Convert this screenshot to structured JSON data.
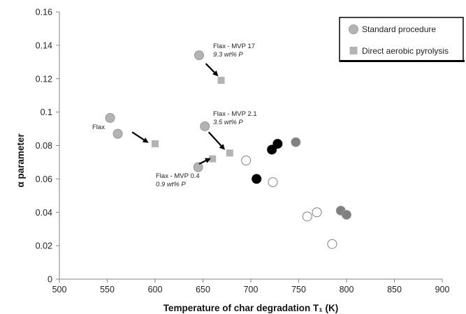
{
  "chart_data": {
    "type": "scatter",
    "xlabel": "Temperature of char degradation T₁ (K)",
    "ylabel": "α parameter",
    "xlim": [
      500,
      900
    ],
    "ylim": [
      0,
      0.16
    ],
    "x_ticks": [
      "500",
      "550",
      "600",
      "650",
      "700",
      "750",
      "800",
      "850",
      "900"
    ],
    "y_ticks": [
      "0",
      "0.02",
      "0.04",
      "0.06",
      "0.08",
      "0.1",
      "0.12",
      "0.14",
      "0.16"
    ],
    "grid": false,
    "legend_position": "top-right",
    "legend": [
      {
        "label": "Standard procedure",
        "marker": "circle",
        "color": "#b3b3b3"
      },
      {
        "label": "Direct aerobic pyrolysis",
        "marker": "square",
        "color": "#b3b3b3"
      }
    ],
    "series": [
      {
        "name": "Standard procedure",
        "marker": "circle",
        "color": "#b3b3b3",
        "points": [
          [
            553,
            0.0965
          ],
          [
            561,
            0.087
          ],
          [
            646,
            0.134
          ],
          [
            652,
            0.0915
          ],
          [
            645,
            0.067
          ]
        ]
      },
      {
        "name": "Direct aerobic pyrolysis",
        "marker": "square",
        "color": "#b3b3b3",
        "points": [
          [
            600,
            0.081
          ],
          [
            669,
            0.119
          ],
          [
            678,
            0.0755
          ],
          [
            660,
            0.072
          ]
        ]
      },
      {
        "marker": "circle",
        "color": "#ffffff",
        "stroke": "#808080",
        "points": [
          [
            695,
            0.071
          ],
          [
            723,
            0.058
          ],
          [
            759,
            0.0375
          ],
          [
            769,
            0.04
          ],
          [
            785,
            0.021
          ]
        ]
      },
      {
        "marker": "circle",
        "color": "#000000",
        "points": [
          [
            706,
            0.06
          ],
          [
            722,
            0.0775
          ],
          [
            728,
            0.081
          ]
        ]
      },
      {
        "marker": "circle",
        "color": "#808080",
        "points": [
          [
            747,
            0.082
          ],
          [
            794,
            0.041
          ],
          [
            800,
            0.0385
          ]
        ]
      }
    ],
    "annotations": [
      {
        "lines": [
          {
            "text": "Flax",
            "italic": false
          }
        ],
        "arrow_from": [
          576,
          0.088
        ],
        "arrow_to": [
          592,
          0.082
        ]
      },
      {
        "lines": [
          {
            "text": "Flax - MVP 17",
            "italic": false
          },
          {
            "text": "9.3 wt% P",
            "italic": true
          }
        ],
        "arrow_from": [
          653,
          0.129
        ],
        "arrow_to": [
          665,
          0.122
        ]
      },
      {
        "lines": [
          {
            "text": "Flax - MVP 2.1",
            "italic": false
          },
          {
            "text": "3.5 wt% P",
            "italic": true
          }
        ],
        "arrow_from": [
          656,
          0.088
        ],
        "arrow_to": [
          672,
          0.078
        ]
      },
      {
        "lines": [
          {
            "text": "Flax - MVP 0.4",
            "italic": false
          },
          {
            "text": "0.9 wt% P",
            "italic": true
          }
        ],
        "arrow_from": [
          646,
          0.069
        ],
        "arrow_to": [
          657,
          0.072
        ]
      }
    ]
  }
}
